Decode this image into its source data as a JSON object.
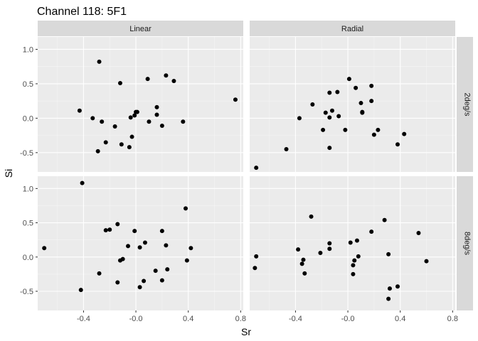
{
  "chart_data": {
    "type": "scatter",
    "title": "Channel 118: 5F1",
    "xlabel": "Sr",
    "ylabel": "Si",
    "xlim": [
      -0.75,
      0.82
    ],
    "ylim": [
      -0.78,
      1.18
    ],
    "x_ticks": [
      -0.4,
      -0.0,
      0.4,
      0.8
    ],
    "x_tick_labels": [
      "-0.4",
      "-0.0",
      "0.4",
      "0.8"
    ],
    "y_ticks": [
      -0.5,
      0.0,
      0.5,
      1.0
    ],
    "y_tick_labels": [
      "-0.5",
      "0.0",
      "0.5",
      "1.0"
    ],
    "grid": true,
    "col_facets": [
      "Linear",
      "Radial"
    ],
    "row_facets": [
      "2deg/s",
      "8deg/s"
    ],
    "panels": [
      {
        "col": "Linear",
        "row": "2deg/s",
        "points": [
          [
            -0.28,
            0.82
          ],
          [
            -0.12,
            0.51
          ],
          [
            0.09,
            0.57
          ],
          [
            0.23,
            0.62
          ],
          [
            0.29,
            0.54
          ],
          [
            0.76,
            0.27
          ],
          [
            -0.43,
            0.11
          ],
          [
            -0.33,
            0.0
          ],
          [
            -0.26,
            -0.05
          ],
          [
            -0.16,
            -0.12
          ],
          [
            -0.04,
            0.01
          ],
          [
            0.0,
            0.09
          ],
          [
            0.01,
            0.09
          ],
          [
            -0.01,
            0.04
          ],
          [
            0.16,
            0.16
          ],
          [
            0.16,
            0.05
          ],
          [
            0.36,
            -0.05
          ],
          [
            0.1,
            -0.05
          ],
          [
            0.2,
            -0.11
          ],
          [
            -0.03,
            -0.27
          ],
          [
            -0.11,
            -0.38
          ],
          [
            -0.05,
            -0.42
          ],
          [
            -0.23,
            -0.35
          ],
          [
            -0.29,
            -0.48
          ]
        ]
      },
      {
        "col": "Radial",
        "row": "2deg/s",
        "points": [
          [
            0.01,
            0.57
          ],
          [
            0.06,
            0.44
          ],
          [
            -0.14,
            0.37
          ],
          [
            0.18,
            0.47
          ],
          [
            -0.08,
            0.38
          ],
          [
            -0.27,
            0.2
          ],
          [
            0.1,
            0.22
          ],
          [
            0.18,
            0.25
          ],
          [
            0.11,
            0.08
          ],
          [
            0.11,
            0.09
          ],
          [
            -0.17,
            0.08
          ],
          [
            -0.12,
            0.11
          ],
          [
            -0.14,
            0.01
          ],
          [
            -0.37,
            0.0
          ],
          [
            -0.07,
            0.03
          ],
          [
            -0.19,
            -0.17
          ],
          [
            -0.02,
            -0.17
          ],
          [
            0.23,
            -0.17
          ],
          [
            0.2,
            -0.24
          ],
          [
            0.43,
            -0.23
          ],
          [
            0.38,
            -0.38
          ],
          [
            -0.14,
            -0.43
          ],
          [
            -0.47,
            -0.45
          ],
          [
            -0.7,
            -0.72
          ]
        ]
      },
      {
        "col": "Linear",
        "row": "8deg/s",
        "points": [
          [
            -0.41,
            1.08
          ],
          [
            0.38,
            0.71
          ],
          [
            -0.7,
            0.13
          ],
          [
            -0.14,
            0.48
          ],
          [
            -0.23,
            0.39
          ],
          [
            -0.2,
            0.4
          ],
          [
            -0.01,
            0.38
          ],
          [
            0.2,
            0.38
          ],
          [
            0.07,
            0.21
          ],
          [
            -0.06,
            0.16
          ],
          [
            0.03,
            0.14
          ],
          [
            0.23,
            0.17
          ],
          [
            0.42,
            0.13
          ],
          [
            -0.1,
            -0.03
          ],
          [
            -0.12,
            -0.05
          ],
          [
            0.39,
            -0.05
          ],
          [
            0.24,
            -0.18
          ],
          [
            0.15,
            -0.2
          ],
          [
            -0.28,
            -0.24
          ],
          [
            0.06,
            -0.35
          ],
          [
            0.2,
            -0.34
          ],
          [
            -0.14,
            -0.37
          ],
          [
            0.03,
            -0.44
          ],
          [
            -0.42,
            -0.48
          ]
        ]
      },
      {
        "col": "Radial",
        "row": "8deg/s",
        "points": [
          [
            -0.28,
            0.59
          ],
          [
            0.28,
            0.54
          ],
          [
            0.54,
            0.35
          ],
          [
            0.18,
            0.37
          ],
          [
            -0.38,
            0.11
          ],
          [
            -0.14,
            0.2
          ],
          [
            0.07,
            0.24
          ],
          [
            0.02,
            0.21
          ],
          [
            -0.14,
            0.12
          ],
          [
            -0.21,
            0.06
          ],
          [
            -0.7,
            0.01
          ],
          [
            0.08,
            0.01
          ],
          [
            0.31,
            0.04
          ],
          [
            -0.34,
            -0.04
          ],
          [
            -0.35,
            -0.1
          ],
          [
            0.05,
            -0.05
          ],
          [
            0.04,
            -0.12
          ],
          [
            0.6,
            -0.06
          ],
          [
            -0.71,
            -0.16
          ],
          [
            -0.33,
            -0.24
          ],
          [
            0.04,
            -0.25
          ],
          [
            0.38,
            -0.43
          ],
          [
            0.32,
            -0.46
          ],
          [
            0.31,
            -0.61
          ]
        ]
      }
    ]
  }
}
